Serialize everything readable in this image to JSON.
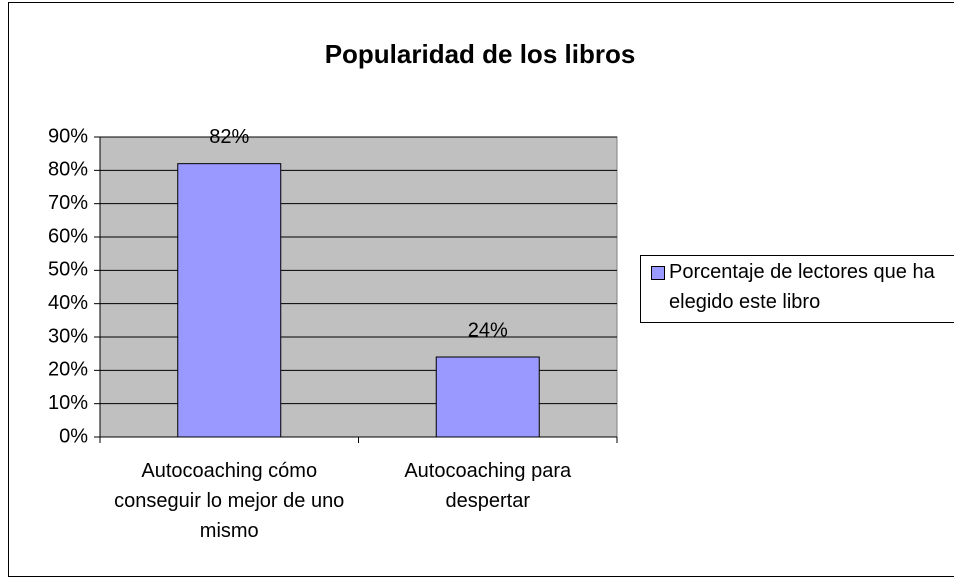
{
  "chart_data": {
    "type": "bar",
    "title": "Popularidad de los libros",
    "categories": [
      "Autocoaching cómo conseguir lo mejor de uno mismo",
      "Autocoaching para despertar"
    ],
    "series": [
      {
        "name": "Porcentaje de lectores que ha elegido este libro",
        "color": "#9999ff",
        "values": [
          82,
          24
        ],
        "value_labels": [
          "82%",
          "24%"
        ]
      }
    ],
    "ylim": [
      0,
      90
    ],
    "yticks": [
      {
        "value": 0,
        "label": "0%"
      },
      {
        "value": 10,
        "label": "10%"
      },
      {
        "value": 20,
        "label": "20%"
      },
      {
        "value": 30,
        "label": "30%"
      },
      {
        "value": 40,
        "label": "40%"
      },
      {
        "value": 50,
        "label": "50%"
      },
      {
        "value": 60,
        "label": "60%"
      },
      {
        "value": 70,
        "label": "70%"
      },
      {
        "value": 80,
        "label": "80%"
      },
      {
        "value": 90,
        "label": "90%"
      }
    ],
    "grid": true,
    "legend": "right"
  }
}
